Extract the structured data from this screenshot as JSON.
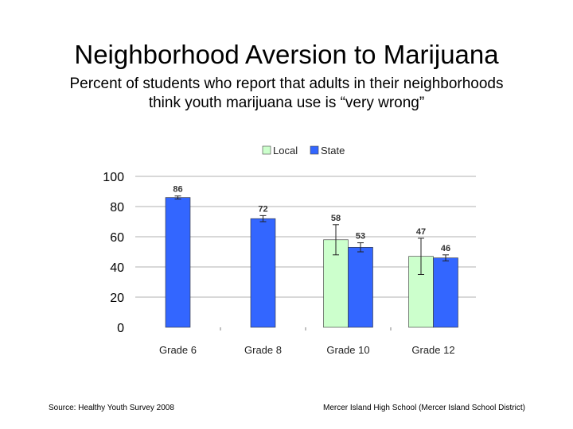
{
  "slide": {
    "title": "Neighborhood Aversion to Marijuana",
    "subtitle_line1": "Percent of students who report that adults in their neighborhoods",
    "subtitle_line2": "think youth marijuana use is “very wrong”",
    "source": "Source: Healthy Youth Survey 2008",
    "credit": "Mercer Island High School (Mercer Island School District)"
  },
  "chart_data": {
    "type": "bar",
    "categories": [
      "Grade 6",
      "Grade 8",
      "Grade 10",
      "Grade 12"
    ],
    "series": [
      {
        "name": "Local",
        "color": "#ccffcc",
        "values": [
          null,
          null,
          58,
          47
        ],
        "error": [
          null,
          null,
          10,
          12
        ]
      },
      {
        "name": "State",
        "color": "#3366ff",
        "values": [
          86,
          72,
          53,
          46
        ],
        "error": [
          1,
          2,
          3,
          2
        ]
      }
    ],
    "data_labels": [
      {
        "Local": null,
        "State": "86"
      },
      {
        "Local": null,
        "State": "72"
      },
      {
        "Local": "58",
        "State": "53"
      },
      {
        "Local": "47",
        "State": "46"
      }
    ],
    "ylim": [
      0,
      100
    ],
    "yticks": [
      0,
      20,
      40,
      60,
      80,
      100
    ],
    "grid": true,
    "legend": "top"
  }
}
